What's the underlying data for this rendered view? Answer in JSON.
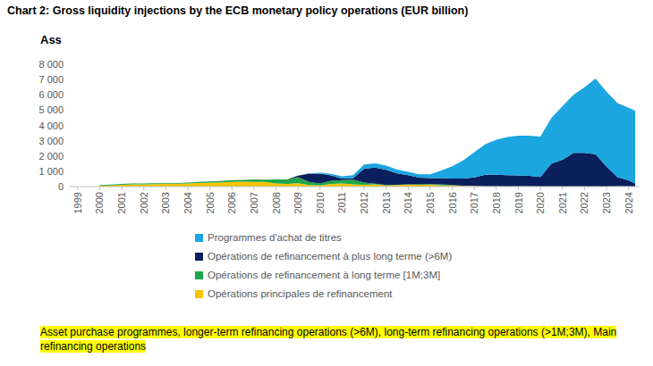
{
  "chart_data": {
    "type": "area",
    "title": "Chart 2: Gross liquidity injections by the ECB monetary policy operations (EUR billion)",
    "subtitle": "Ass",
    "annotations": [
      "Asset purchase programmes, longer-term refinancing operations (>6M), long-term refinancing operations (>1M;3M), Main refinancing operations"
    ],
    "stacked": true,
    "grid": false,
    "legend": "bottom",
    "x": [
      2000,
      2000.5,
      2001,
      2001.5,
      2002,
      2002.5,
      2003,
      2003.5,
      2004,
      2004.5,
      2005,
      2005.5,
      2006,
      2006.5,
      2007,
      2007.5,
      2008,
      2008.5,
      2009,
      2009.5,
      2010,
      2010.5,
      2011,
      2011.5,
      2012,
      2012.5,
      2013,
      2013.5,
      2014,
      2014.5,
      2015,
      2015.5,
      2016,
      2016.5,
      2017,
      2017.5,
      2018,
      2018.5,
      2019,
      2019.5,
      2020,
      2020.5,
      2021,
      2021.5,
      2022,
      2022.5,
      2023,
      2023.5,
      2024,
      2024.3
    ],
    "xlim": [
      1998.6,
      2024.5
    ],
    "xticks": [
      1999,
      2000,
      2001,
      2002,
      2003,
      2004,
      2005,
      2006,
      2007,
      2008,
      2009,
      2010,
      2011,
      2012,
      2013,
      2014,
      2015,
      2016,
      2017,
      2018,
      2019,
      2020,
      2021,
      2022,
      2023,
      2024
    ],
    "ylim": [
      0,
      8000
    ],
    "yticks": [
      0,
      {
        "value": 1000,
        "label": "1 000"
      },
      {
        "value": 2000,
        "label": "2 000"
      },
      {
        "value": 3000,
        "label": "3 000"
      },
      {
        "value": 4000,
        "label": "4 000"
      },
      {
        "value": 5000,
        "label": "5 000"
      },
      {
        "value": 6000,
        "label": "6 000"
      },
      {
        "value": 7000,
        "label": "7 000"
      },
      {
        "value": 8000,
        "label": "8 000"
      }
    ],
    "series": [
      {
        "name": "Programmes d'achat de titres",
        "color": "#1ba6e0",
        "values": [
          0,
          0,
          0,
          0,
          0,
          0,
          0,
          0,
          0,
          0,
          0,
          0,
          0,
          0,
          0,
          0,
          0,
          0,
          0,
          10,
          50,
          100,
          150,
          200,
          280,
          280,
          270,
          250,
          230,
          220,
          250,
          500,
          800,
          1200,
          1650,
          2000,
          2300,
          2500,
          2600,
          2620,
          2650,
          3000,
          3500,
          3800,
          4300,
          4950,
          4900,
          4850,
          4750,
          4750
        ]
      },
      {
        "name": "Opérations de refinancement à plus long terme (>6M)",
        "color": "#0b1f5c",
        "values": [
          0,
          0,
          0,
          0,
          0,
          0,
          0,
          0,
          0,
          0,
          0,
          0,
          0,
          0,
          0,
          0,
          0,
          0,
          100,
          550,
          640,
          350,
          100,
          100,
          900,
          1050,
          1000,
          750,
          600,
          450,
          400,
          400,
          430,
          460,
          550,
          760,
          760,
          740,
          720,
          700,
          620,
          1500,
          1750,
          2200,
          2200,
          2120,
          1300,
          600,
          400,
          200
        ]
      },
      {
        "name": "Opérations de refinancement à long terme [1M;3M]",
        "color": "#1fa64a",
        "values": [
          45,
          45,
          60,
          60,
          60,
          60,
          45,
          45,
          60,
          75,
          90,
          90,
          120,
          120,
          150,
          150,
          270,
          300,
          400,
          200,
          130,
          200,
          220,
          300,
          150,
          50,
          20,
          10,
          10,
          30,
          30,
          70,
          30,
          20,
          15,
          5,
          5,
          5,
          3,
          3,
          2,
          1,
          1,
          0.5,
          0.5,
          0.5,
          1,
          3,
          5,
          5
        ]
      },
      {
        "name": "Opérations principales de refinancement",
        "color": "#f7c500",
        "values": [
          60,
          80,
          120,
          140,
          140,
          160,
          180,
          190,
          200,
          230,
          250,
          280,
          300,
          320,
          310,
          300,
          200,
          170,
          220,
          100,
          80,
          180,
          200,
          150,
          120,
          140,
          80,
          100,
          130,
          110,
          130,
          80,
          70,
          40,
          35,
          5,
          3,
          2,
          6,
          5,
          2,
          1,
          0.5,
          0.3,
          0.2,
          0.2,
          1,
          5,
          3,
          2
        ]
      }
    ]
  }
}
